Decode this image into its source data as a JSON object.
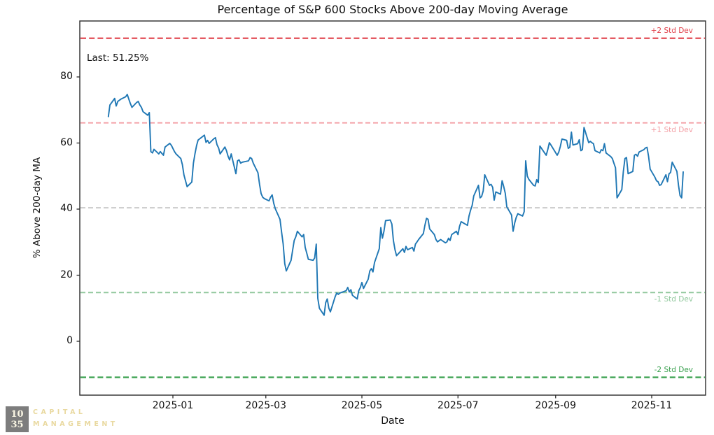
{
  "title": "Percentage of S&P 600 Stocks Above 200-day Moving Average",
  "annotation": {
    "last_label": "Last: 51.25%"
  },
  "axes": {
    "xlabel": "Date",
    "ylabel": "% Above 200-day MA",
    "x_tick_labels": [
      "2025-01",
      "2025-03",
      "2025-05",
      "2025-07",
      "2025-09",
      "2025-11"
    ],
    "y_tick_values": [
      0,
      20,
      40,
      60,
      80
    ]
  },
  "logo": {
    "box_line1": "10",
    "box_line2": "35",
    "word1": "CAPITAL",
    "word2": "MANAGEMENT"
  },
  "colors": {
    "series": "#1f77b4",
    "plus2": "#e0404a",
    "plus1": "#f39fa5",
    "mean": "#c4c4c4",
    "minus1": "#8fc79b",
    "minus2": "#39a04e",
    "axis": "#2b2b2b"
  },
  "chart_data": {
    "type": "line",
    "title": "Percentage of S&P 600 Stocks Above 200-day Moving Average",
    "xlabel": "Date",
    "ylabel": "% Above 200-day MA",
    "ylim": [
      -16.5,
      97
    ],
    "x_range": [
      "2024-11-03",
      "2025-12-05"
    ],
    "grid": false,
    "legend": "none",
    "last_value": 51.25,
    "mean": 40.4,
    "std_dev": 25.65,
    "reference_lines": [
      {
        "label": "+2 Std Dev",
        "value": 91.7,
        "color": "#e0404a",
        "style": "dashed",
        "weight": 2.2,
        "label_position": "above-right"
      },
      {
        "label": "+1 Std Dev",
        "value": 66.1,
        "color": "#f39fa5",
        "style": "dashed",
        "weight": 1.8,
        "label_position": "below-right"
      },
      {
        "label": "",
        "value": 40.4,
        "color": "#c4c4c4",
        "style": "dashed",
        "weight": 1.8,
        "label_position": "none"
      },
      {
        "label": "-1 Std Dev",
        "value": 14.75,
        "color": "#8fc79b",
        "style": "dashed",
        "weight": 1.8,
        "label_position": "below-right"
      },
      {
        "label": "-2 Std Dev",
        "value": -10.9,
        "color": "#39a04e",
        "style": "dashed",
        "weight": 2.2,
        "label_position": "above-right"
      }
    ],
    "x": [
      "2024-11-21",
      "2024-11-22",
      "2024-11-25",
      "2024-11-26",
      "2024-11-27",
      "2024-11-29",
      "2024-12-02",
      "2024-12-03",
      "2024-12-04",
      "2024-12-05",
      "2024-12-06",
      "2024-12-09",
      "2024-12-10",
      "2024-12-11",
      "2024-12-12",
      "2024-12-13",
      "2024-12-16",
      "2024-12-17",
      "2024-12-18",
      "2024-12-19",
      "2024-12-20",
      "2024-12-23",
      "2024-12-24",
      "2024-12-26",
      "2024-12-27",
      "2024-12-30",
      "2024-12-31",
      "2025-01-02",
      "2025-01-03",
      "2025-01-06",
      "2025-01-07",
      "2025-01-08",
      "2025-01-10",
      "2025-01-13",
      "2025-01-14",
      "2025-01-15",
      "2025-01-16",
      "2025-01-17",
      "2025-01-21",
      "2025-01-22",
      "2025-01-23",
      "2025-01-24",
      "2025-01-27",
      "2025-01-28",
      "2025-01-29",
      "2025-01-30",
      "2025-01-31",
      "2025-02-03",
      "2025-02-04",
      "2025-02-05",
      "2025-02-06",
      "2025-02-07",
      "2025-02-10",
      "2025-02-11",
      "2025-02-12",
      "2025-02-13",
      "2025-02-14",
      "2025-02-18",
      "2025-02-19",
      "2025-02-20",
      "2025-02-21",
      "2025-02-24",
      "2025-02-25",
      "2025-02-26",
      "2025-02-27",
      "2025-02-28",
      "2025-03-03",
      "2025-03-04",
      "2025-03-05",
      "2025-03-06",
      "2025-03-07",
      "2025-03-10",
      "2025-03-11",
      "2025-03-12",
      "2025-03-13",
      "2025-03-14",
      "2025-03-17",
      "2025-03-18",
      "2025-03-19",
      "2025-03-20",
      "2025-03-21",
      "2025-03-24",
      "2025-03-25",
      "2025-03-26",
      "2025-03-27",
      "2025-03-28",
      "2025-03-31",
      "2025-04-01",
      "2025-04-02",
      "2025-04-03",
      "2025-04-04",
      "2025-04-07",
      "2025-04-08",
      "2025-04-09",
      "2025-04-10",
      "2025-04-11",
      "2025-04-14",
      "2025-04-15",
      "2025-04-16",
      "2025-04-17",
      "2025-04-21",
      "2025-04-22",
      "2025-04-23",
      "2025-04-24",
      "2025-04-25",
      "2025-04-28",
      "2025-04-29",
      "2025-04-30",
      "2025-05-01",
      "2025-05-02",
      "2025-05-05",
      "2025-05-06",
      "2025-05-07",
      "2025-05-08",
      "2025-05-09",
      "2025-05-12",
      "2025-05-13",
      "2025-05-14",
      "2025-05-15",
      "2025-05-16",
      "2025-05-19",
      "2025-05-20",
      "2025-05-21",
      "2025-05-22",
      "2025-05-23",
      "2025-05-27",
      "2025-05-28",
      "2025-05-29",
      "2025-05-30",
      "2025-06-02",
      "2025-06-03",
      "2025-06-04",
      "2025-06-05",
      "2025-06-06",
      "2025-06-09",
      "2025-06-10",
      "2025-06-11",
      "2025-06-12",
      "2025-06-13",
      "2025-06-16",
      "2025-06-17",
      "2025-06-18",
      "2025-06-20",
      "2025-06-23",
      "2025-06-24",
      "2025-06-25",
      "2025-06-26",
      "2025-06-27",
      "2025-06-30",
      "2025-07-01",
      "2025-07-02",
      "2025-07-03",
      "2025-07-07",
      "2025-07-08",
      "2025-07-09",
      "2025-07-10",
      "2025-07-11",
      "2025-07-14",
      "2025-07-15",
      "2025-07-16",
      "2025-07-17",
      "2025-07-18",
      "2025-07-21",
      "2025-07-22",
      "2025-07-23",
      "2025-07-24",
      "2025-07-25",
      "2025-07-28",
      "2025-07-29",
      "2025-07-30",
      "2025-07-31",
      "2025-08-01",
      "2025-08-04",
      "2025-08-05",
      "2025-08-06",
      "2025-08-07",
      "2025-08-08",
      "2025-08-11",
      "2025-08-12",
      "2025-08-13",
      "2025-08-14",
      "2025-08-15",
      "2025-08-18",
      "2025-08-19",
      "2025-08-20",
      "2025-08-21",
      "2025-08-22",
      "2025-08-25",
      "2025-08-26",
      "2025-08-27",
      "2025-08-28",
      "2025-08-29",
      "2025-09-02",
      "2025-09-03",
      "2025-09-04",
      "2025-09-05",
      "2025-09-08",
      "2025-09-09",
      "2025-09-10",
      "2025-09-11",
      "2025-09-12",
      "2025-09-15",
      "2025-09-16",
      "2025-09-17",
      "2025-09-18",
      "2025-09-19",
      "2025-09-22",
      "2025-09-23",
      "2025-09-24",
      "2025-09-25",
      "2025-09-26",
      "2025-09-29",
      "2025-09-30",
      "2025-10-01",
      "2025-10-02",
      "2025-10-03",
      "2025-10-06",
      "2025-10-07",
      "2025-10-08",
      "2025-10-09",
      "2025-10-10",
      "2025-10-13",
      "2025-10-14",
      "2025-10-15",
      "2025-10-16",
      "2025-10-17",
      "2025-10-20",
      "2025-10-21",
      "2025-10-22",
      "2025-10-23",
      "2025-10-24",
      "2025-10-27",
      "2025-10-28",
      "2025-10-29",
      "2025-10-30",
      "2025-10-31",
      "2025-11-03",
      "2025-11-04",
      "2025-11-05",
      "2025-11-06",
      "2025-11-07",
      "2025-11-10",
      "2025-11-11",
      "2025-11-12",
      "2025-11-13",
      "2025-11-14",
      "2025-11-17",
      "2025-11-18",
      "2025-11-19",
      "2025-11-20",
      "2025-11-21"
    ],
    "series": [
      {
        "name": "% of S&P 600 stocks above 200-day MA",
        "color": "#1f77b4",
        "values": [
          68.0,
          71.5,
          73.5,
          71.2,
          72.6,
          73.3,
          74.0,
          74.7,
          73.3,
          71.9,
          70.8,
          72.3,
          72.6,
          71.5,
          70.8,
          69.5,
          68.4,
          69.2,
          57.4,
          57.0,
          58.1,
          56.7,
          57.4,
          56.3,
          58.8,
          59.9,
          59.3,
          57.4,
          56.7,
          55.3,
          53.5,
          50.3,
          46.8,
          48.2,
          53.9,
          56.7,
          59.2,
          60.9,
          62.4,
          60.2,
          60.8,
          59.9,
          61.3,
          61.6,
          59.5,
          58.5,
          56.7,
          58.8,
          57.7,
          56.0,
          54.9,
          56.7,
          50.7,
          54.6,
          54.9,
          53.9,
          54.2,
          54.6,
          55.6,
          55.3,
          53.9,
          51.0,
          47.5,
          44.7,
          43.6,
          43.2,
          42.5,
          43.6,
          44.3,
          41.8,
          40.1,
          36.9,
          33.0,
          29.5,
          23.5,
          21.3,
          24.5,
          27.5,
          30.5,
          31.6,
          33.3,
          31.6,
          32.3,
          28.4,
          26.6,
          24.8,
          24.5,
          25.2,
          29.4,
          13.0,
          10.0,
          7.9,
          11.7,
          12.8,
          10.0,
          8.9,
          13.5,
          14.6,
          14.2,
          14.6,
          15.3,
          16.3,
          14.9,
          15.6,
          13.9,
          12.8,
          15.3,
          16.3,
          17.8,
          16.0,
          18.8,
          21.3,
          22.0,
          21.0,
          23.8,
          28.0,
          34.4,
          31.2,
          33.3,
          36.5,
          36.7,
          35.5,
          30.5,
          27.7,
          25.9,
          28.0,
          26.9,
          28.7,
          27.7,
          28.4,
          27.3,
          29.4,
          30.1,
          30.8,
          32.6,
          35.1,
          37.2,
          36.9,
          34.0,
          32.3,
          30.8,
          30.1,
          30.8,
          29.8,
          30.1,
          31.2,
          30.5,
          32.3,
          33.3,
          32.3,
          34.8,
          36.2,
          35.1,
          37.9,
          39.7,
          41.1,
          44.0,
          47.2,
          43.4,
          43.8,
          45.5,
          50.4,
          47.2,
          47.5,
          46.6,
          42.7,
          45.2,
          44.5,
          48.6,
          46.9,
          44.8,
          40.7,
          38.2,
          33.3,
          35.8,
          37.5,
          38.6,
          37.9,
          39.2,
          54.6,
          50.0,
          49.0,
          47.2,
          47.0,
          48.9,
          48.0,
          59.1,
          57.0,
          56.3,
          58.0,
          60.1,
          59.4,
          56.3,
          57.3,
          59.0,
          61.2,
          60.8,
          58.4,
          58.7,
          63.3,
          59.4,
          59.8,
          61.0,
          57.7,
          58.0,
          64.7,
          60.1,
          60.5,
          60.1,
          59.8,
          57.7,
          57.0,
          58.0,
          57.7,
          59.8,
          57.0,
          55.9,
          55.3,
          53.9,
          52.5,
          43.4,
          45.9,
          51.4,
          55.3,
          55.6,
          50.7,
          51.4,
          56.3,
          56.6,
          56.0,
          57.3,
          58.0,
          58.5,
          58.7,
          56.0,
          52.1,
          49.7,
          48.6,
          48.3,
          47.2,
          47.4,
          50.4,
          48.3,
          50.7,
          51.1,
          54.2,
          51.4,
          47.2,
          44.1,
          43.4,
          51.25
        ]
      }
    ]
  }
}
